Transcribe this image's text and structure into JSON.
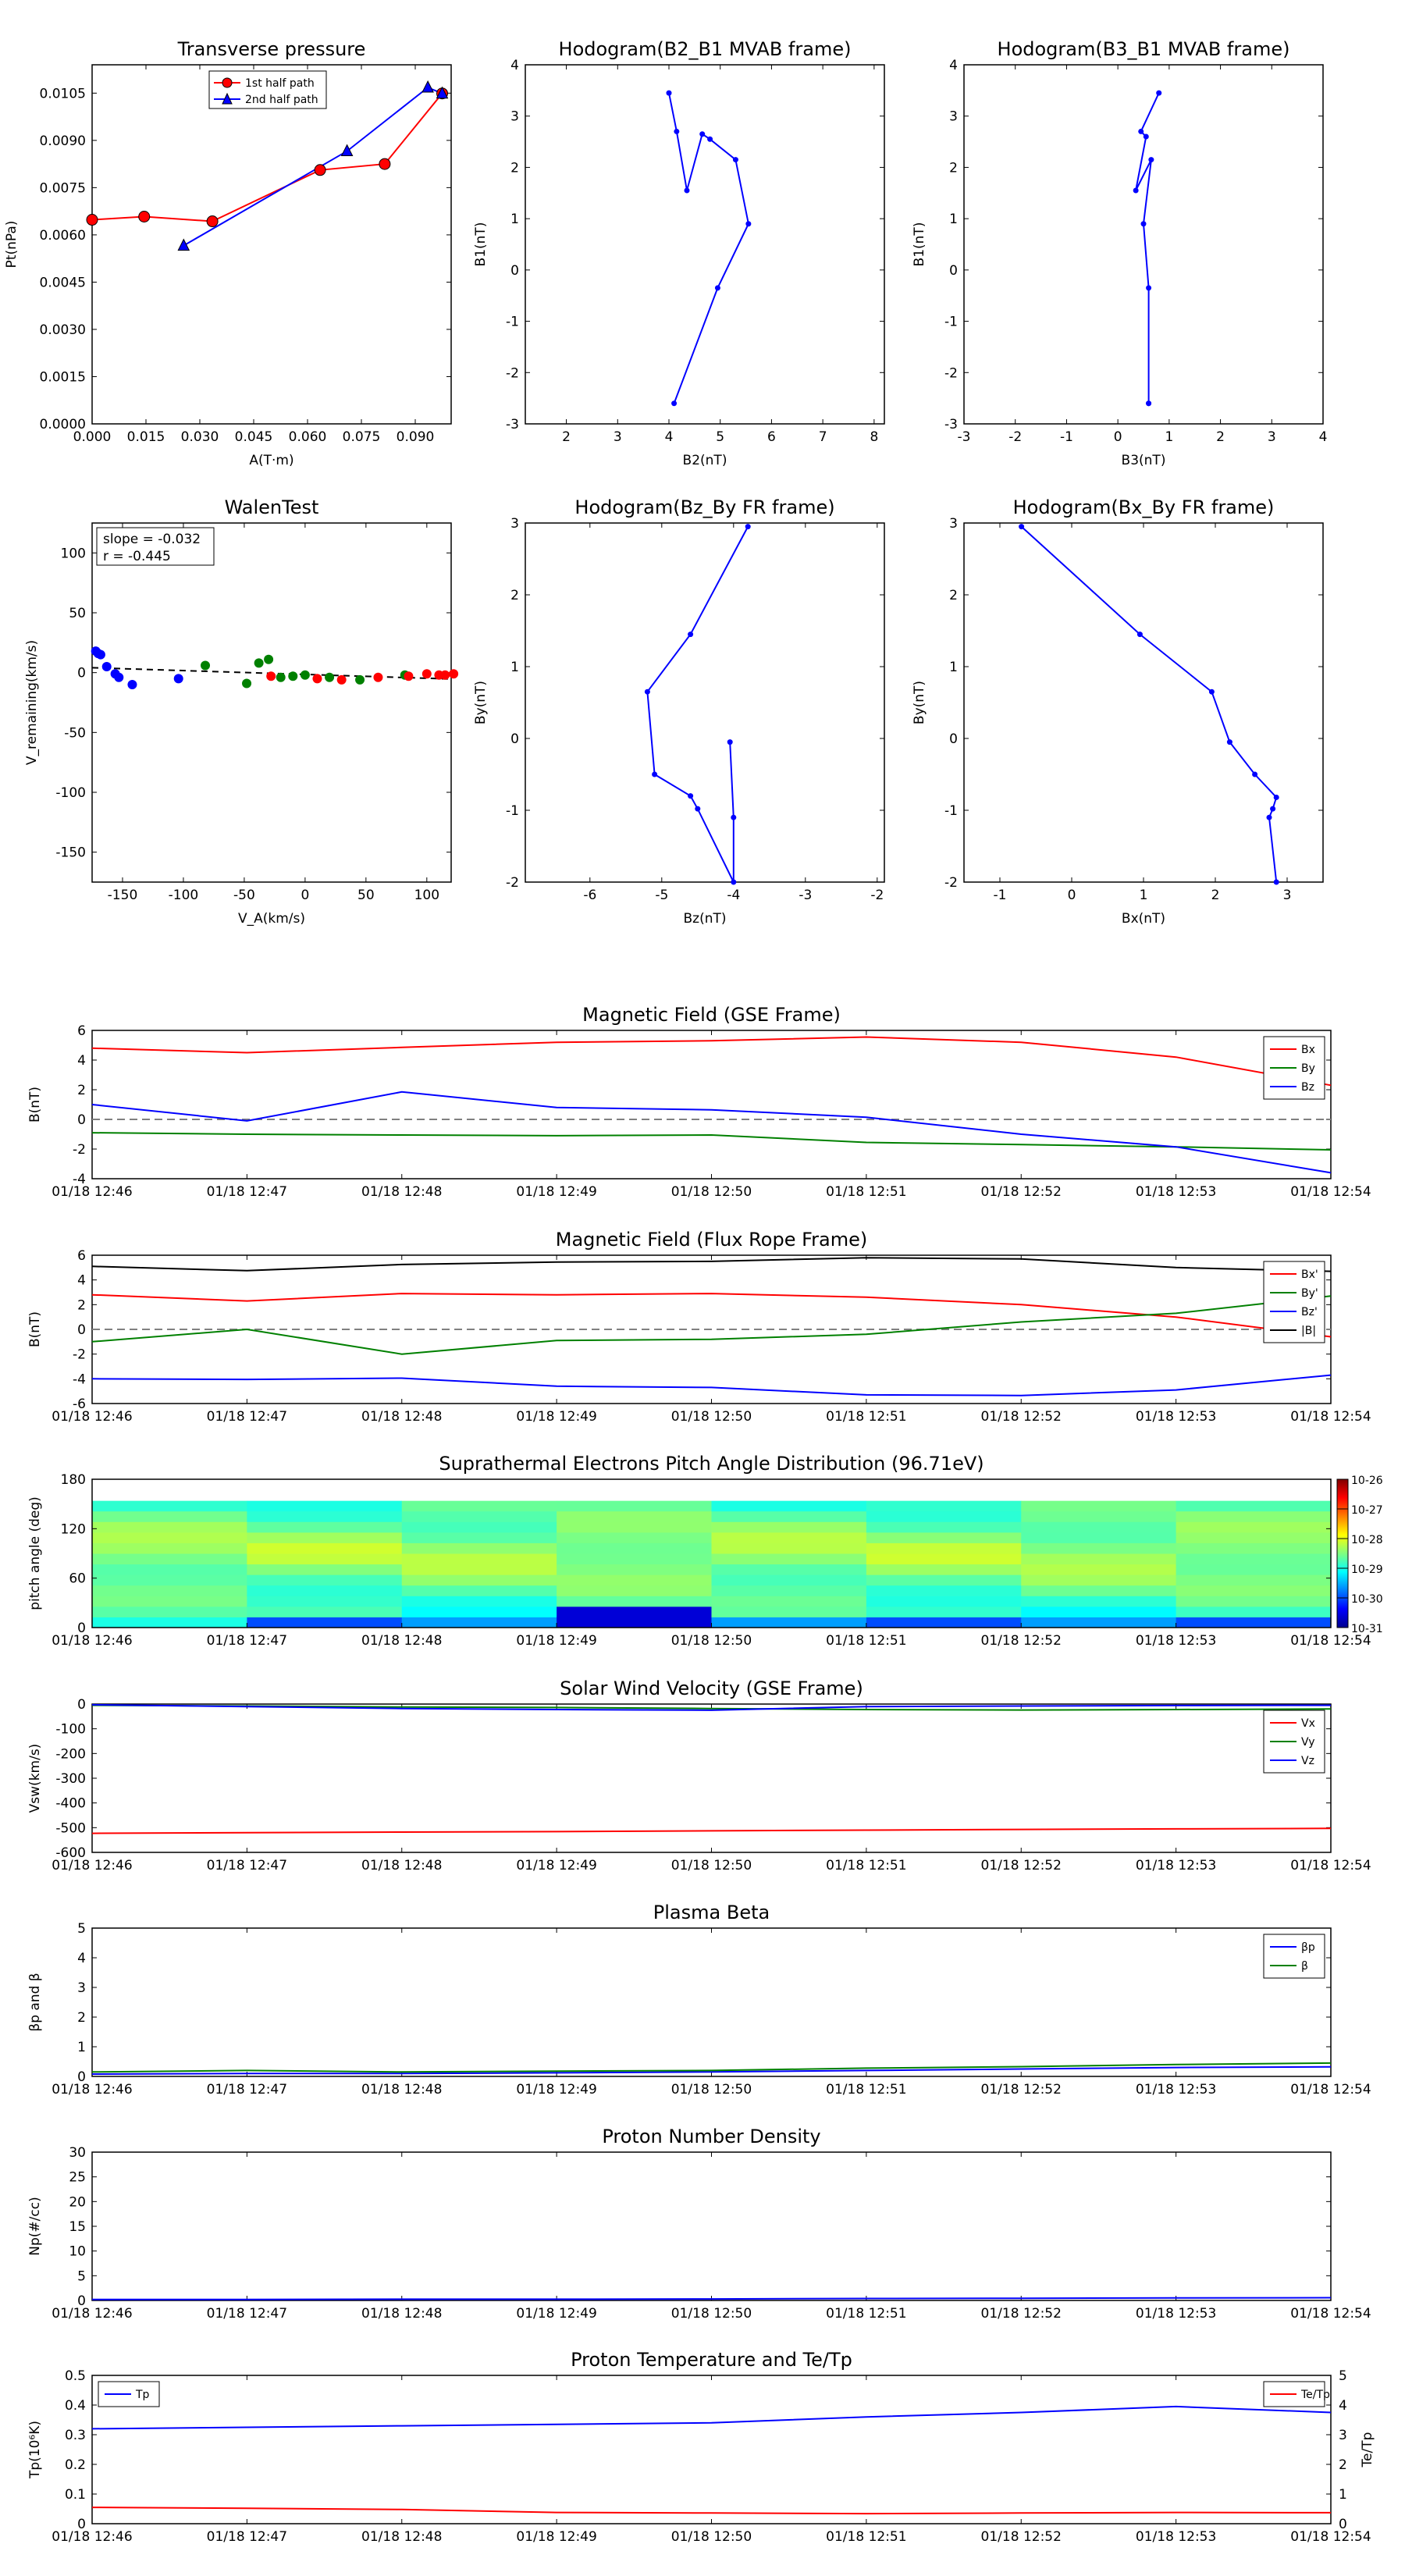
{
  "colors": {
    "red": "#ff0000",
    "green": "#008000",
    "blue": "#0000ff",
    "black": "#000000",
    "gray": "#808080"
  },
  "time_ticks": [
    "01/18 12:46",
    "01/18 12:47",
    "01/18 12:48",
    "01/18 12:49",
    "01/18 12:50",
    "01/18 12:51",
    "01/18 12:52",
    "01/18 12:53",
    "01/18 12:54"
  ],
  "colorbar": {
    "labels": [
      "10-26",
      "10-27",
      "10-28",
      "10-29",
      "10-30",
      "10-31"
    ]
  },
  "chart_data": [
    {
      "id": "tp",
      "type": "line",
      "title": "Transverse pressure",
      "xlabel": "A(T·m)",
      "ylabel": "Pt(nPa)",
      "xlim": [
        0,
        0.1
      ],
      "ylim": [
        0,
        0.0114
      ],
      "xticks": [
        0,
        0.015,
        0.03,
        0.045,
        0.06,
        0.075,
        0.09
      ],
      "xtick_labels": [
        "0.000",
        "0.015",
        "0.030",
        "0.045",
        "0.060",
        "0.075",
        "0.090"
      ],
      "yticks": [
        0,
        0.0015,
        0.003,
        0.0045,
        0.006,
        0.0075,
        0.009,
        0.0105
      ],
      "ytick_labels": [
        "0.0000",
        "0.0015",
        "0.0030",
        "0.0045",
        "0.0060",
        "0.0075",
        "0.0090",
        "0.0105"
      ],
      "legend": "top-center",
      "series": [
        {
          "name": "1st half path",
          "marker": "circle",
          "x": [
            0,
            0.0145,
            0.0335,
            0.0635,
            0.0815,
            0.0975
          ],
          "y": [
            0.00648,
            0.00658,
            0.00643,
            0.00806,
            0.00825,
            0.01049
          ]
        },
        {
          "name": "2nd half path",
          "marker": "triangle",
          "x": [
            0.0255,
            0.071,
            0.0935,
            0.0975
          ],
          "y": [
            0.00566,
            0.00866,
            0.01068,
            0.01049
          ]
        }
      ]
    },
    {
      "id": "h1",
      "type": "line",
      "title": "Hodogram(B2_B1 MVAB frame)",
      "xlabel": "B2(nT)",
      "ylabel": "B1(nT)",
      "xlim": [
        1.2,
        8.2
      ],
      "ylim": [
        -3,
        4
      ],
      "xticks": [
        2,
        3,
        4,
        5,
        6,
        7,
        8
      ],
      "yticks": [
        -3,
        -2,
        -1,
        0,
        1,
        2,
        3,
        4
      ],
      "series": [
        {
          "x": [
            4.0,
            4.15,
            4.35,
            4.65,
            4.8,
            5.3,
            5.55,
            4.95,
            4.1
          ],
          "y": [
            3.45,
            2.7,
            1.55,
            2.65,
            2.55,
            2.15,
            0.9,
            -0.35,
            -2.6
          ]
        }
      ]
    },
    {
      "id": "h2",
      "type": "line",
      "title": "Hodogram(B3_B1 MVAB frame)",
      "xlabel": "B3(nT)",
      "ylabel": "B1(nT)",
      "xlim": [
        -3,
        4
      ],
      "ylim": [
        -3,
        4
      ],
      "xticks": [
        -3,
        -2,
        -1,
        0,
        1,
        2,
        3,
        4
      ],
      "yticks": [
        -3,
        -2,
        -1,
        0,
        1,
        2,
        3,
        4
      ],
      "series": [
        {
          "x": [
            0.8,
            0.45,
            0.55,
            0.35,
            0.65,
            0.5,
            0.6,
            0.6,
            0.6
          ],
          "y": [
            3.45,
            2.7,
            2.6,
            1.55,
            2.15,
            0.9,
            -0.35,
            -2.6,
            -2.6
          ]
        }
      ]
    },
    {
      "id": "walen",
      "type": "scatter",
      "title": "WalenTest",
      "xlabel": "V_A(km/s)",
      "ylabel": "V_remaining(km/s)",
      "xlim": [
        -175,
        120
      ],
      "ylim": [
        -175,
        125
      ],
      "xticks": [
        -150,
        -100,
        -50,
        0,
        50,
        100
      ],
      "yticks": [
        -150,
        -100,
        -50,
        0,
        50,
        100
      ],
      "annotation": [
        "slope = -0.032",
        "r = -0.445"
      ],
      "fit": {
        "slope": -0.032,
        "intercept": -1.5
      },
      "series": [
        {
          "color": "blue",
          "x": [
            -172,
            -170,
            -168,
            -163,
            -156,
            -153,
            -142,
            -104
          ],
          "y": [
            18,
            16,
            15,
            5,
            -1,
            -4,
            -10,
            -5
          ]
        },
        {
          "color": "green",
          "x": [
            -82,
            -48,
            -38,
            -30,
            -20,
            -10,
            0,
            20,
            45,
            82
          ],
          "y": [
            6,
            -9,
            8,
            11,
            -4,
            -3,
            -2,
            -4,
            -6,
            -2
          ]
        },
        {
          "color": "red",
          "x": [
            -28,
            10,
            30,
            60,
            85,
            100,
            110,
            115,
            122
          ],
          "y": [
            -3,
            -5,
            -6,
            -4,
            -3,
            -1,
            -2,
            -2,
            -1
          ]
        }
      ]
    },
    {
      "id": "h3",
      "type": "line",
      "title": "Hodogram(Bz_By FR frame)",
      "xlabel": "Bz(nT)",
      "ylabel": "By(nT)",
      "xlim": [
        -6.9,
        -1.9
      ],
      "ylim": [
        -2,
        3
      ],
      "xticks": [
        -6,
        -5,
        -4,
        -3,
        -2
      ],
      "yticks": [
        -2,
        -1,
        0,
        1,
        2,
        3
      ],
      "series": [
        {
          "x": [
            -3.8,
            -4.6,
            -5.2,
            -5.1,
            -4.6,
            -4.5,
            -4.0,
            -4.0,
            -4.05
          ],
          "y": [
            2.95,
            1.45,
            0.65,
            -0.5,
            -0.8,
            -0.98,
            -2.0,
            -1.1,
            -0.05
          ]
        }
      ]
    },
    {
      "id": "h4",
      "type": "line",
      "title": "Hodogram(Bx_By FR frame)",
      "xlabel": "Bx(nT)",
      "ylabel": "By(nT)",
      "xlim": [
        -1.5,
        3.5
      ],
      "ylim": [
        -2,
        3
      ],
      "xticks": [
        -1,
        0,
        1,
        2,
        3
      ],
      "yticks": [
        -2,
        -1,
        0,
        1,
        2,
        3
      ],
      "series": [
        {
          "x": [
            -0.7,
            0.95,
            1.95,
            2.2,
            2.55,
            2.85,
            2.8,
            2.75,
            2.85
          ],
          "y": [
            2.95,
            1.45,
            0.65,
            -0.05,
            -0.5,
            -0.82,
            -0.98,
            -1.1,
            -2.0
          ]
        }
      ]
    },
    {
      "id": "bgse",
      "type": "line",
      "title": "Magnetic Field (GSE Frame)",
      "ylabel": "B(nT)",
      "ylim": [
        -4,
        6
      ],
      "yticks": [
        -4,
        -2,
        0,
        2,
        4,
        6
      ],
      "legend": "top-right",
      "zero_line": true,
      "series": [
        {
          "name": "Bx",
          "color": "red",
          "values": [
            4.8,
            4.5,
            4.85,
            5.2,
            5.3,
            5.55,
            5.2,
            4.2,
            2.3
          ]
        },
        {
          "name": "By",
          "color": "green",
          "values": [
            -0.9,
            -1.0,
            -1.05,
            -1.1,
            -1.05,
            -1.55,
            -1.7,
            -1.85,
            -2.05
          ]
        },
        {
          "name": "Bz",
          "color": "blue",
          "values": [
            1.0,
            -0.1,
            1.85,
            0.8,
            0.65,
            0.15,
            -1.0,
            -1.85,
            -3.6
          ]
        }
      ]
    },
    {
      "id": "bfr",
      "type": "line",
      "title": "Magnetic Field (Flux Rope Frame)",
      "ylabel": "B(nT)",
      "ylim": [
        -6,
        6
      ],
      "yticks": [
        -6,
        -4,
        -2,
        0,
        2,
        4,
        6
      ],
      "legend": "top-right",
      "zero_line": true,
      "series": [
        {
          "name": "Bx'",
          "color": "red",
          "values": [
            2.8,
            2.3,
            2.9,
            2.8,
            2.9,
            2.6,
            2.0,
            1.0,
            -0.6
          ]
        },
        {
          "name": "By'",
          "color": "green",
          "values": [
            -1.0,
            0.0,
            -2.0,
            -0.9,
            -0.8,
            -0.4,
            0.6,
            1.3,
            2.7
          ]
        },
        {
          "name": "Bz'",
          "color": "blue",
          "values": [
            -4.0,
            -4.05,
            -3.95,
            -4.6,
            -4.7,
            -5.3,
            -5.35,
            -4.9,
            -3.7
          ]
        },
        {
          "name": "|B|",
          "color": "black",
          "values": [
            5.1,
            4.75,
            5.25,
            5.45,
            5.5,
            5.8,
            5.7,
            5.0,
            4.7
          ]
        }
      ]
    },
    {
      "id": "pad",
      "type": "heatmap",
      "title": "Suprathermal Electrons Pitch Angle Distribution (96.71eV)",
      "ylabel": "pitch angle (deg)",
      "ylim": [
        0,
        180
      ],
      "yticks": [
        0,
        60,
        120,
        180
      ],
      "colorbar_range_log10": [
        -31,
        -26
      ]
    },
    {
      "id": "vsw",
      "type": "line",
      "title": "Solar Wind Velocity (GSE Frame)",
      "ylabel": "Vsw(km/s)",
      "ylim": [
        -600,
        0
      ],
      "yticks": [
        -600,
        -500,
        -400,
        -300,
        -200,
        -100,
        0
      ],
      "legend": "top-right",
      "series": [
        {
          "name": "Vx",
          "color": "red",
          "values": [
            -523,
            -520,
            -518,
            -516,
            -513,
            -510,
            -507,
            -505,
            -503
          ]
        },
        {
          "name": "Vy",
          "color": "green",
          "values": [
            -5,
            -8,
            -12,
            -14,
            -18,
            -22,
            -24,
            -22,
            -20
          ]
        },
        {
          "name": "Vz",
          "color": "blue",
          "values": [
            -3,
            -10,
            -18,
            -22,
            -25,
            -10,
            -8,
            -6,
            -5
          ]
        }
      ]
    },
    {
      "id": "beta",
      "type": "line",
      "title": "Plasma Beta",
      "ylabel": "βp and β",
      "ylim": [
        0,
        5
      ],
      "yticks": [
        0,
        1,
        2,
        3,
        4,
        5
      ],
      "legend": "top-right",
      "series": [
        {
          "name": "βp",
          "color": "blue",
          "values": [
            0.08,
            0.1,
            0.1,
            0.12,
            0.15,
            0.2,
            0.25,
            0.3,
            0.32
          ]
        },
        {
          "name": "β",
          "color": "green",
          "values": [
            0.15,
            0.2,
            0.15,
            0.18,
            0.2,
            0.28,
            0.33,
            0.4,
            0.45
          ]
        }
      ]
    },
    {
      "id": "np",
      "type": "line",
      "title": "Proton Number Density",
      "ylabel": "Np(#/cc)",
      "ylim": [
        0,
        30
      ],
      "yticks": [
        0,
        5,
        10,
        15,
        20,
        25,
        30
      ],
      "series": [
        {
          "color": "blue",
          "values": [
            0.2,
            0.2,
            0.25,
            0.25,
            0.3,
            0.4,
            0.45,
            0.5,
            0.55
          ]
        }
      ]
    },
    {
      "id": "temp",
      "type": "line",
      "title": "Proton Temperature and Te/Tp",
      "ylabel": "Tp(10⁶K)",
      "ylabel_right": "Te/Tp",
      "ylim": [
        0,
        0.5
      ],
      "yticks": [
        0,
        0.1,
        0.2,
        0.3,
        0.4,
        0.5
      ],
      "ylim_right": [
        0,
        5
      ],
      "yticks_right": [
        0,
        1,
        2,
        3,
        4,
        5
      ],
      "series": [
        {
          "name": "Tp",
          "color": "blue",
          "axis": "left",
          "values": [
            0.32,
            0.325,
            0.33,
            0.335,
            0.34,
            0.36,
            0.375,
            0.395,
            0.375
          ]
        },
        {
          "name": "Te/Tp",
          "color": "red",
          "axis": "right",
          "values": [
            0.55,
            0.52,
            0.48,
            0.38,
            0.36,
            0.34,
            0.36,
            0.38,
            0.37
          ]
        }
      ]
    }
  ]
}
